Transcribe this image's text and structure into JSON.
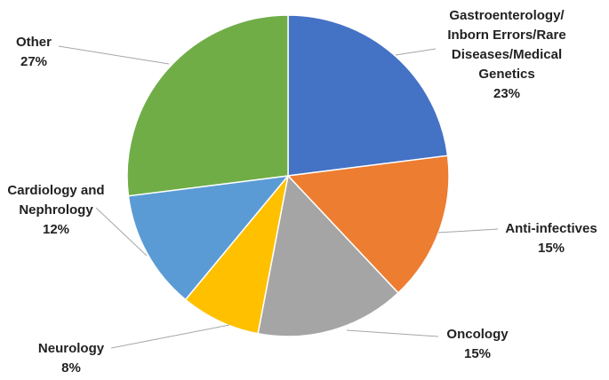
{
  "chart_data": {
    "type": "pie",
    "title": "",
    "start_angle_deg": 0,
    "direction": "clockwise",
    "legend": "none",
    "data_labels": "outside-with-leader-lines",
    "slices": [
      {
        "label_lines": [
          "Gastroenterology/",
          "Inborn Errors/Rare",
          "Diseases/Medical",
          "Genetics"
        ],
        "percent_text": "23%",
        "value": 23,
        "color": "#4472c4"
      },
      {
        "label_lines": [
          "Anti-infectives"
        ],
        "percent_text": "15%",
        "value": 15,
        "color": "#ed7d31"
      },
      {
        "label_lines": [
          "Oncology"
        ],
        "percent_text": "15%",
        "value": 15,
        "color": "#a5a5a5"
      },
      {
        "label_lines": [
          "Neurology"
        ],
        "percent_text": "8%",
        "value": 8,
        "color": "#ffc000"
      },
      {
        "label_lines": [
          "Cardiology and",
          "Nephrology"
        ],
        "percent_text": "12%",
        "value": 12,
        "color": "#5b9bd5"
      },
      {
        "label_lines": [
          "Other"
        ],
        "percent_text": "27%",
        "value": 27,
        "color": "#70ad47"
      }
    ]
  }
}
